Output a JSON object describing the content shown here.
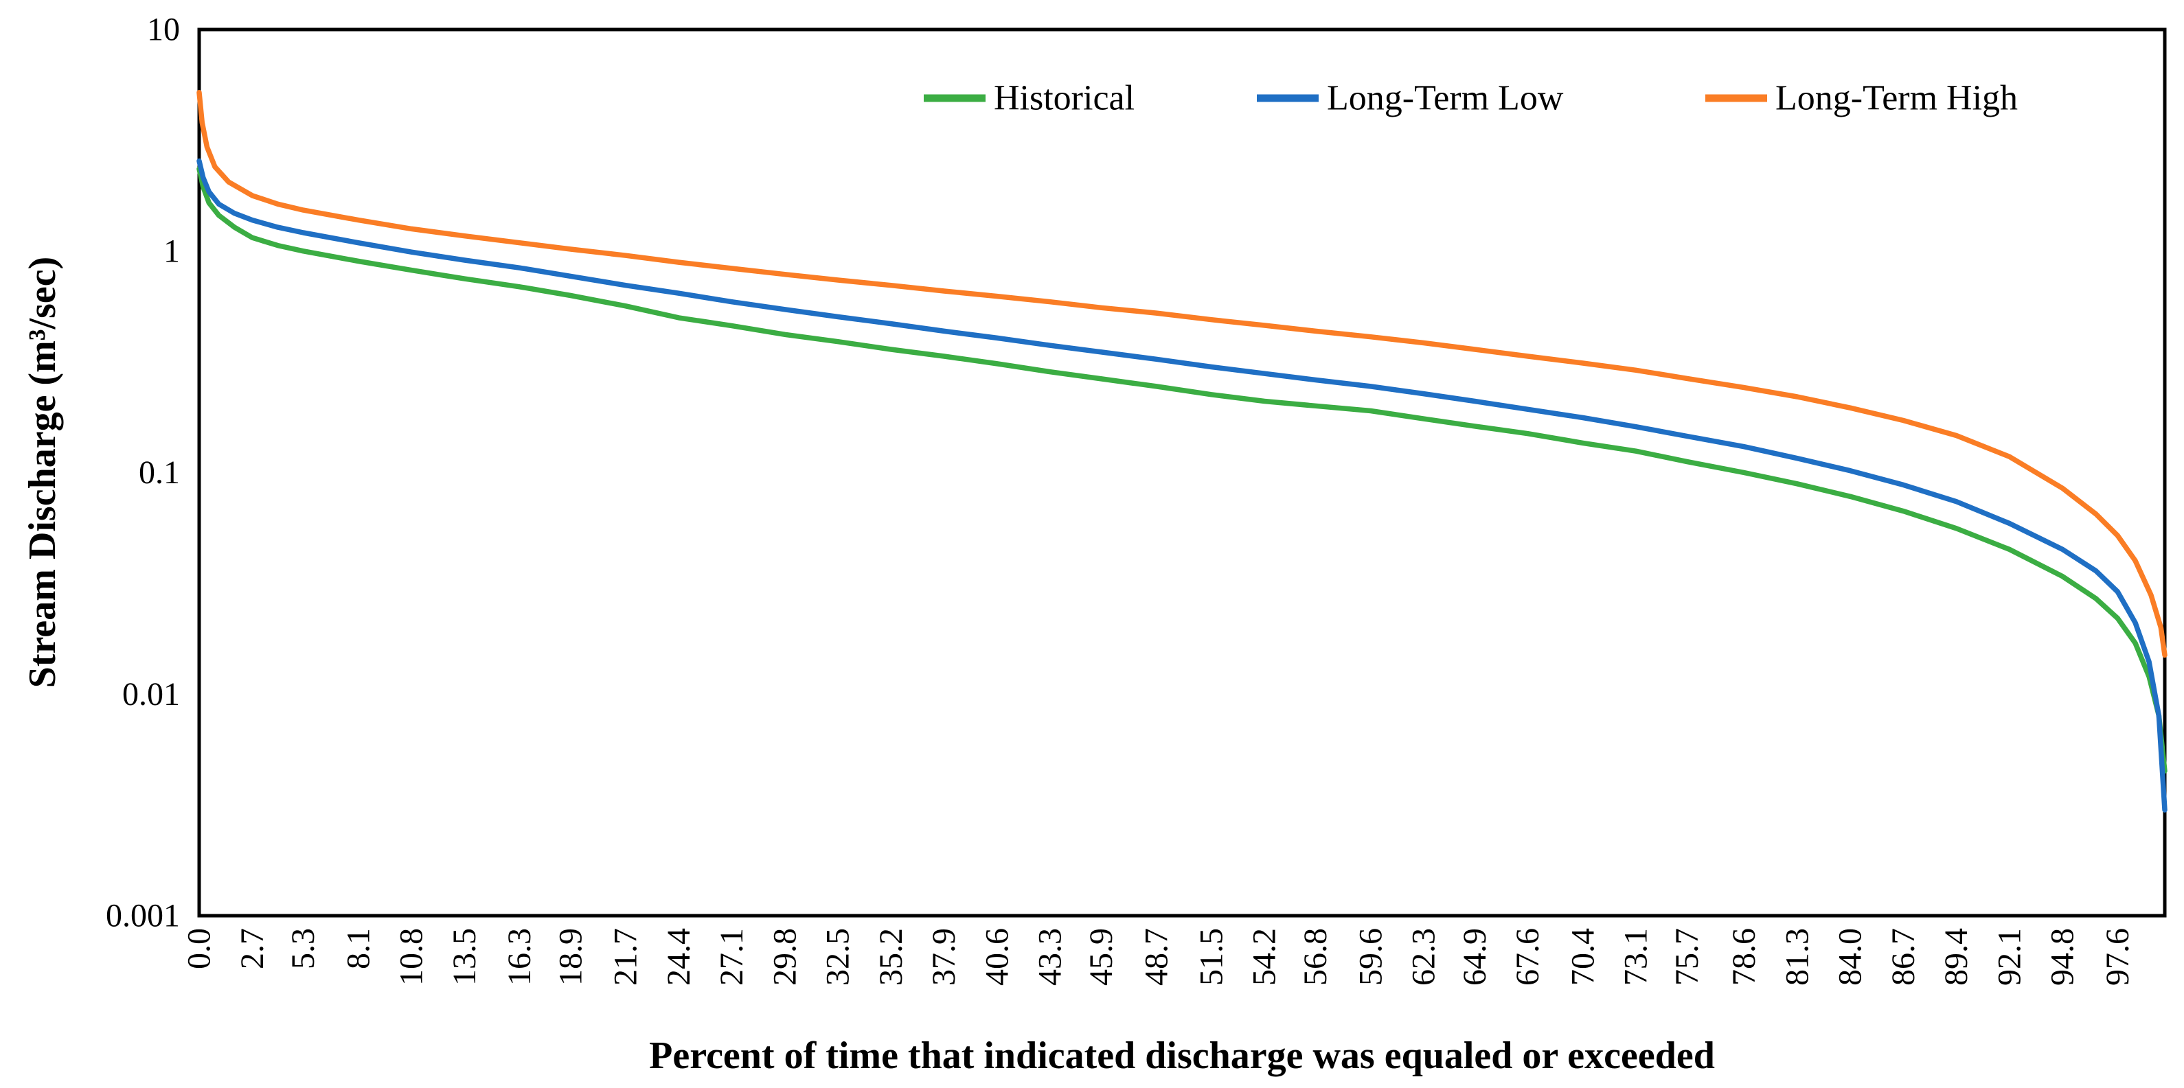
{
  "chart_data": {
    "type": "line",
    "title": "",
    "grid": false,
    "legend_position": "top-right-inside",
    "background_color": "#ffffff",
    "border_color": "#000000",
    "x_axis": {
      "label": "Percent of time that indicated discharge was equaled or exceeded",
      "range": [
        0,
        100
      ],
      "scale": "linear",
      "tick_labels": [
        "0.0",
        "2.7",
        "5.3",
        "8.1",
        "10.8",
        "13.5",
        "16.3",
        "18.9",
        "21.7",
        "24.4",
        "27.1",
        "29.8",
        "32.5",
        "35.2",
        "37.9",
        "40.6",
        "43.3",
        "45.9",
        "48.7",
        "51.5",
        "54.2",
        "56.8",
        "59.6",
        "62.3",
        "64.9",
        "67.6",
        "70.4",
        "73.1",
        "75.7",
        "78.6",
        "81.3",
        "84.0",
        "86.7",
        "89.4",
        "92.1",
        "94.8",
        "97.6"
      ]
    },
    "y_axis": {
      "label": "Stream Discharge (m³/sec)",
      "scale": "log",
      "range": [
        0.001,
        10
      ],
      "tick_labels": [
        "10",
        "1",
        "0.1",
        "0.01",
        "0.001"
      ],
      "tick_values": [
        10,
        1,
        0.1,
        0.01,
        0.001
      ]
    },
    "series": [
      {
        "name": "Historical",
        "color": "#3BAD43",
        "points": [
          [
            0,
            2.35
          ],
          [
            0.2,
            1.95
          ],
          [
            0.5,
            1.65
          ],
          [
            1.0,
            1.45
          ],
          [
            1.8,
            1.28
          ],
          [
            2.7,
            1.15
          ],
          [
            4.0,
            1.06
          ],
          [
            5.3,
            1.0
          ],
          [
            8.1,
            0.9
          ],
          [
            10.8,
            0.82
          ],
          [
            13.5,
            0.75
          ],
          [
            16.3,
            0.69
          ],
          [
            18.9,
            0.63
          ],
          [
            21.7,
            0.565
          ],
          [
            24.4,
            0.5
          ],
          [
            27.1,
            0.46
          ],
          [
            29.8,
            0.42
          ],
          [
            32.5,
            0.39
          ],
          [
            35.2,
            0.36
          ],
          [
            37.9,
            0.335
          ],
          [
            40.6,
            0.31
          ],
          [
            43.3,
            0.285
          ],
          [
            45.9,
            0.265
          ],
          [
            48.7,
            0.245
          ],
          [
            51.5,
            0.225
          ],
          [
            54.2,
            0.21
          ],
          [
            56.8,
            0.2
          ],
          [
            59.6,
            0.19
          ],
          [
            62.3,
            0.175
          ],
          [
            64.9,
            0.162
          ],
          [
            67.6,
            0.15
          ],
          [
            70.4,
            0.136
          ],
          [
            73.1,
            0.125
          ],
          [
            75.7,
            0.112
          ],
          [
            78.6,
            0.1
          ],
          [
            81.3,
            0.089
          ],
          [
            84.0,
            0.078
          ],
          [
            86.7,
            0.067
          ],
          [
            89.4,
            0.056
          ],
          [
            92.1,
            0.045
          ],
          [
            94.8,
            0.034
          ],
          [
            96.5,
            0.027
          ],
          [
            97.6,
            0.022
          ],
          [
            98.5,
            0.017
          ],
          [
            99.2,
            0.012
          ],
          [
            99.7,
            0.008
          ],
          [
            100,
            0.0045
          ]
        ]
      },
      {
        "name": "Long-Term Low",
        "color": "#1F6FC4",
        "points": [
          [
            0,
            2.55
          ],
          [
            0.2,
            2.15
          ],
          [
            0.5,
            1.85
          ],
          [
            1.0,
            1.63
          ],
          [
            1.8,
            1.48
          ],
          [
            2.7,
            1.38
          ],
          [
            4.0,
            1.28
          ],
          [
            5.3,
            1.21
          ],
          [
            8.1,
            1.09
          ],
          [
            10.8,
            0.99
          ],
          [
            13.5,
            0.91
          ],
          [
            16.3,
            0.84
          ],
          [
            18.9,
            0.77
          ],
          [
            21.7,
            0.7
          ],
          [
            24.4,
            0.645
          ],
          [
            27.1,
            0.59
          ],
          [
            29.8,
            0.545
          ],
          [
            32.5,
            0.505
          ],
          [
            35.2,
            0.47
          ],
          [
            37.9,
            0.435
          ],
          [
            40.6,
            0.405
          ],
          [
            43.3,
            0.375
          ],
          [
            45.9,
            0.35
          ],
          [
            48.7,
            0.325
          ],
          [
            51.5,
            0.3
          ],
          [
            54.2,
            0.28
          ],
          [
            56.8,
            0.262
          ],
          [
            59.6,
            0.245
          ],
          [
            62.3,
            0.227
          ],
          [
            64.9,
            0.21
          ],
          [
            67.6,
            0.193
          ],
          [
            70.4,
            0.177
          ],
          [
            73.1,
            0.161
          ],
          [
            75.7,
            0.146
          ],
          [
            78.6,
            0.131
          ],
          [
            81.3,
            0.116
          ],
          [
            84.0,
            0.102
          ],
          [
            86.7,
            0.088
          ],
          [
            89.4,
            0.074
          ],
          [
            92.1,
            0.059
          ],
          [
            94.8,
            0.045
          ],
          [
            96.5,
            0.036
          ],
          [
            97.6,
            0.029
          ],
          [
            98.5,
            0.021
          ],
          [
            99.2,
            0.014
          ],
          [
            99.7,
            0.008
          ],
          [
            100,
            0.003
          ]
        ]
      },
      {
        "name": "Long-Term High",
        "color": "#FA7D25",
        "points": [
          [
            0,
            5.2
          ],
          [
            0.15,
            3.8
          ],
          [
            0.4,
            2.95
          ],
          [
            0.8,
            2.4
          ],
          [
            1.5,
            2.05
          ],
          [
            2.7,
            1.78
          ],
          [
            4.0,
            1.63
          ],
          [
            5.3,
            1.53
          ],
          [
            8.1,
            1.38
          ],
          [
            10.8,
            1.26
          ],
          [
            13.5,
            1.17
          ],
          [
            16.3,
            1.09
          ],
          [
            18.9,
            1.02
          ],
          [
            21.7,
            0.955
          ],
          [
            24.4,
            0.89
          ],
          [
            27.1,
            0.835
          ],
          [
            29.8,
            0.785
          ],
          [
            32.5,
            0.74
          ],
          [
            35.2,
            0.7
          ],
          [
            37.9,
            0.66
          ],
          [
            40.6,
            0.625
          ],
          [
            43.3,
            0.59
          ],
          [
            45.9,
            0.555
          ],
          [
            48.7,
            0.525
          ],
          [
            51.5,
            0.49
          ],
          [
            54.2,
            0.462
          ],
          [
            56.8,
            0.435
          ],
          [
            59.6,
            0.41
          ],
          [
            62.3,
            0.385
          ],
          [
            64.9,
            0.36
          ],
          [
            67.6,
            0.335
          ],
          [
            70.4,
            0.312
          ],
          [
            73.1,
            0.29
          ],
          [
            75.7,
            0.266
          ],
          [
            78.6,
            0.242
          ],
          [
            81.3,
            0.22
          ],
          [
            84.0,
            0.196
          ],
          [
            86.7,
            0.172
          ],
          [
            89.4,
            0.147
          ],
          [
            92.1,
            0.118
          ],
          [
            94.8,
            0.085
          ],
          [
            96.5,
            0.065
          ],
          [
            97.6,
            0.052
          ],
          [
            98.5,
            0.04
          ],
          [
            99.3,
            0.028
          ],
          [
            99.8,
            0.02
          ],
          [
            100,
            0.015
          ]
        ]
      }
    ]
  }
}
